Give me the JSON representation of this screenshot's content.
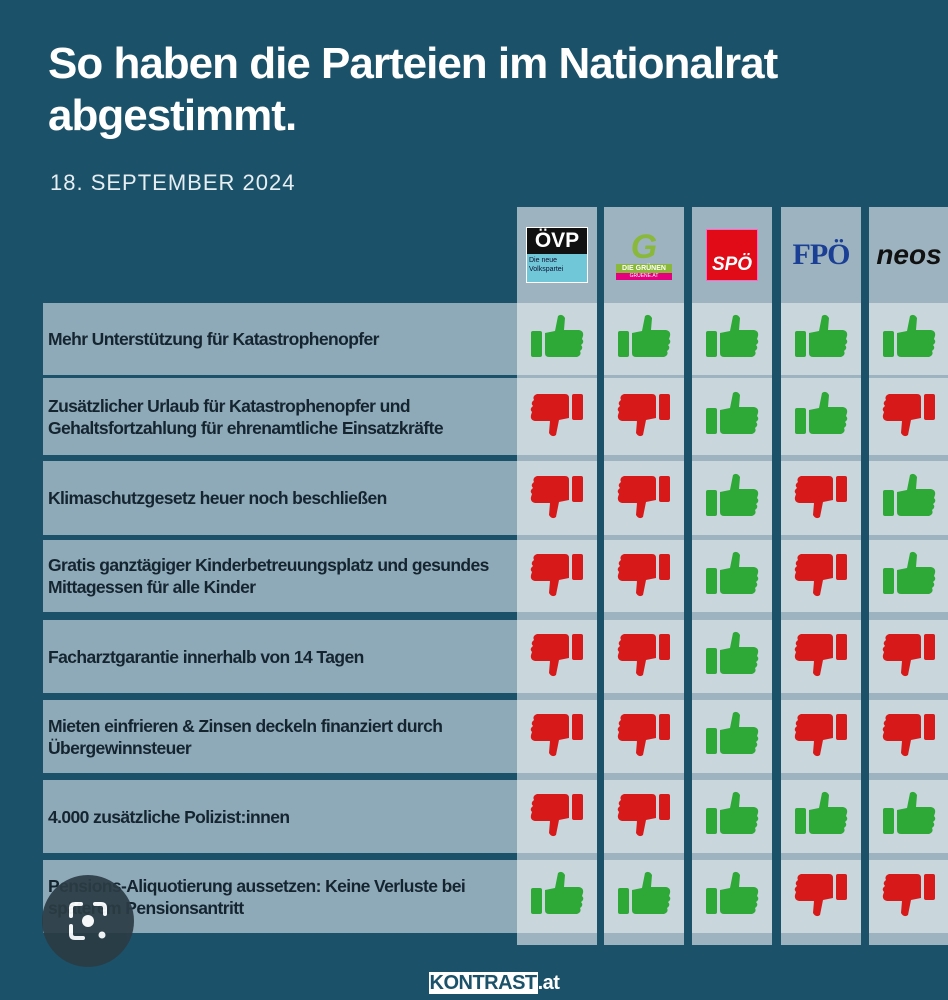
{
  "title": "So haben die Parteien im Nationalrat abgestimmt.",
  "date": "18. SEPTEMBER 2024",
  "colors": {
    "background": "#1b5269",
    "yes": "#2ea836",
    "no": "#d7191a"
  },
  "parties": [
    {
      "name": "ÖVP",
      "tagline": "Die neue Volkspartei"
    },
    {
      "name": "DIE GRÜNEN",
      "tagline": "GRUENE.AT"
    },
    {
      "name": "SPÖ"
    },
    {
      "name": "FPÖ"
    },
    {
      "name": "neos"
    }
  ],
  "rows": [
    {
      "label": "Mehr Unterstützung für Katastrophenopfer",
      "votes": [
        "yes",
        "yes",
        "yes",
        "yes",
        "yes"
      ]
    },
    {
      "label": "Zusätzlicher Urlaub für Katastrophenopfer und Gehaltsfortzahlung für ehrenamtliche Einsatzkräfte",
      "votes": [
        "no",
        "no",
        "yes",
        "yes",
        "no"
      ]
    },
    {
      "label": "Klimaschutzgesetz heuer noch beschließen",
      "votes": [
        "no",
        "no",
        "yes",
        "no",
        "yes"
      ]
    },
    {
      "label": "Gratis ganztägiger Kinderbetreuungsplatz und gesundes Mittagessen für alle Kinder",
      "votes": [
        "no",
        "no",
        "yes",
        "no",
        "yes"
      ]
    },
    {
      "label": "Facharztgarantie innerhalb von 14 Tagen",
      "votes": [
        "no",
        "no",
        "yes",
        "no",
        "no"
      ]
    },
    {
      "label": "Mieten einfrieren & Zinsen deckeln finanziert durch Übergewinnsteuer",
      "votes": [
        "no",
        "no",
        "yes",
        "no",
        "no"
      ]
    },
    {
      "label": "4.000 zusätzliche Polizist:innen",
      "votes": [
        "no",
        "no",
        "yes",
        "yes",
        "yes"
      ]
    },
    {
      "label": "Pensions-Aliquotierung aussetzen: Keine Verluste bei späterem Pensionsantritt",
      "votes": [
        "yes",
        "yes",
        "yes",
        "no",
        "no"
      ]
    }
  ],
  "footer": {
    "brand": "KONTRAST",
    "suffix": ".at"
  }
}
